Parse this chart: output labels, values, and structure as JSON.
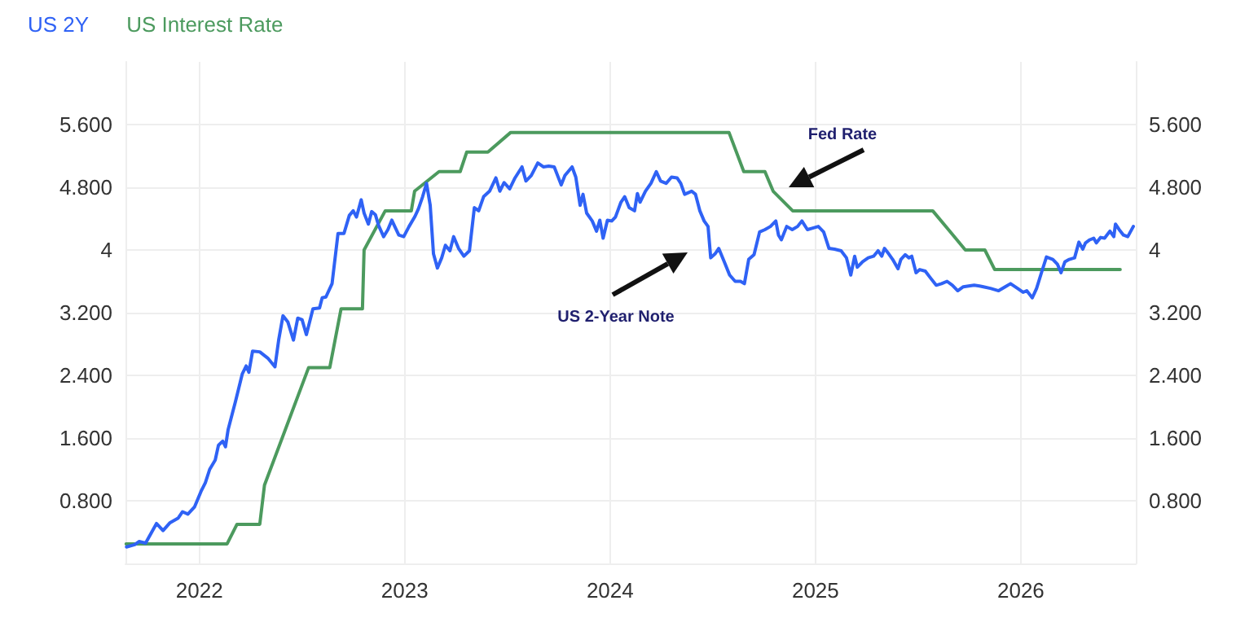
{
  "chart_data": {
    "type": "line",
    "series": [
      {
        "name": "US 2Y",
        "color": "#2f62f5",
        "x": [
          2021.645,
          2021.685,
          2021.706,
          2021.738,
          2021.791,
          2021.823,
          2021.857,
          2021.897,
          2021.918,
          2021.944,
          2021.976,
          2022.008,
          2022.029,
          2022.05,
          2022.077,
          2022.093,
          2022.114,
          2022.127,
          2022.14,
          2022.175,
          2022.209,
          2022.228,
          2022.241,
          2022.259,
          2022.294,
          2022.333,
          2022.368,
          2022.386,
          2022.407,
          2022.431,
          2022.458,
          2022.479,
          2022.5,
          2022.521,
          2022.553,
          2022.585,
          2022.598,
          2022.616,
          2022.646,
          2022.675,
          2022.704,
          2022.73,
          2022.749,
          2022.765,
          2022.788,
          2022.802,
          2022.823,
          2022.839,
          2022.857,
          2022.873,
          2022.897,
          2022.918,
          2022.937,
          2022.955,
          2022.971,
          2022.995,
          2023.021,
          2023.048,
          2023.066,
          2023.087,
          2023.106,
          2023.124,
          2023.14,
          2023.159,
          2023.18,
          2023.198,
          2023.22,
          2023.238,
          2023.262,
          2023.288,
          2023.315,
          2023.339,
          2023.36,
          2023.384,
          2023.413,
          2023.444,
          2023.463,
          2023.484,
          2023.511,
          2023.537,
          2023.571,
          2023.59,
          2023.616,
          2023.648,
          2023.675,
          2023.701,
          2023.728,
          2023.762,
          2023.78,
          2023.815,
          2023.833,
          2023.854,
          2023.868,
          2023.886,
          2023.913,
          2023.934,
          2023.95,
          2023.966,
          2023.987,
          2024.008,
          2024.026,
          2024.053,
          2024.071,
          2024.093,
          2024.119,
          2024.133,
          2024.146,
          2024.172,
          2024.199,
          2024.225,
          2024.246,
          2024.273,
          2024.299,
          2024.326,
          2024.344,
          2024.363,
          2024.397,
          2024.416,
          2024.437,
          2024.458,
          2024.477,
          2024.49,
          2024.511,
          2024.529,
          2024.556,
          2024.582,
          2024.609,
          2024.635,
          2024.654,
          2024.675,
          2024.701,
          2024.728,
          2024.754,
          2024.781,
          2024.807,
          2024.82,
          2024.834,
          2024.86,
          2024.887,
          2024.913,
          2024.934,
          2024.961,
          2024.987,
          2025.014,
          2025.04,
          2025.066,
          2025.093,
          2025.125,
          2025.151,
          2025.172,
          2025.191,
          2025.204,
          2025.23,
          2025.257,
          2025.283,
          2025.305,
          2025.323,
          2025.336,
          2025.357,
          2025.376,
          2025.402,
          2025.416,
          2025.437,
          2025.455,
          2025.469,
          2025.49,
          2025.508,
          2025.535,
          2025.561,
          2025.588,
          2025.614,
          2025.641,
          2025.667,
          2025.693,
          2025.72,
          2025.746,
          2025.773,
          2025.799,
          2025.818,
          2025.852,
          2025.892,
          2025.924,
          2025.95,
          2025.984,
          2026.011,
          2026.029,
          2026.056,
          2026.077,
          2026.103,
          2026.125,
          2026.156,
          2026.178,
          2026.196,
          2026.215,
          2026.236,
          2026.262,
          2026.283,
          2026.302,
          2026.315,
          2026.336,
          2026.355,
          2026.368,
          2026.389,
          2026.408,
          2026.434,
          2026.453,
          2026.461,
          2026.479,
          2026.5,
          2026.521,
          2026.548
        ],
        "values": [
          0.21,
          0.24,
          0.28,
          0.26,
          0.51,
          0.42,
          0.52,
          0.58,
          0.66,
          0.63,
          0.72,
          0.92,
          1.03,
          1.2,
          1.32,
          1.51,
          1.56,
          1.49,
          1.71,
          2.06,
          2.42,
          2.52,
          2.44,
          2.71,
          2.7,
          2.62,
          2.51,
          2.85,
          3.16,
          3.08,
          2.85,
          3.13,
          3.11,
          2.92,
          3.25,
          3.26,
          3.39,
          3.4,
          3.57,
          4.21,
          4.21,
          4.44,
          4.5,
          4.42,
          4.64,
          4.47,
          4.33,
          4.49,
          4.45,
          4.31,
          4.17,
          4.26,
          4.38,
          4.28,
          4.19,
          4.17,
          4.3,
          4.42,
          4.52,
          4.68,
          4.85,
          4.57,
          3.95,
          3.77,
          3.9,
          4.06,
          3.99,
          4.17,
          4.02,
          3.92,
          3.99,
          4.54,
          4.5,
          4.68,
          4.75,
          4.92,
          4.75,
          4.86,
          4.78,
          4.92,
          5.06,
          4.88,
          4.95,
          5.11,
          5.06,
          5.07,
          5.06,
          4.83,
          4.95,
          5.06,
          4.93,
          4.57,
          4.71,
          4.47,
          4.37,
          4.24,
          4.38,
          4.15,
          4.38,
          4.37,
          4.42,
          4.61,
          4.68,
          4.54,
          4.5,
          4.72,
          4.61,
          4.75,
          4.85,
          5.0,
          4.88,
          4.85,
          4.93,
          4.92,
          4.85,
          4.71,
          4.75,
          4.71,
          4.5,
          4.37,
          4.3,
          3.9,
          3.95,
          4.02,
          3.85,
          3.68,
          3.6,
          3.6,
          3.57,
          3.88,
          3.94,
          4.23,
          4.26,
          4.3,
          4.37,
          4.19,
          4.13,
          4.3,
          4.26,
          4.3,
          4.37,
          4.26,
          4.28,
          4.3,
          4.23,
          4.02,
          4.01,
          3.99,
          3.9,
          3.68,
          3.92,
          3.78,
          3.85,
          3.9,
          3.92,
          3.99,
          3.92,
          4.02,
          3.95,
          3.88,
          3.76,
          3.88,
          3.94,
          3.9,
          3.92,
          3.71,
          3.75,
          3.73,
          3.64,
          3.55,
          3.57,
          3.6,
          3.55,
          3.48,
          3.53,
          3.54,
          3.55,
          3.54,
          3.53,
          3.51,
          3.48,
          3.53,
          3.57,
          3.51,
          3.46,
          3.48,
          3.39,
          3.51,
          3.73,
          3.91,
          3.88,
          3.82,
          3.71,
          3.85,
          3.88,
          3.9,
          4.1,
          4.01,
          4.09,
          4.13,
          4.15,
          4.09,
          4.16,
          4.15,
          4.24,
          4.17,
          4.33,
          4.26,
          4.19,
          4.17,
          4.3
        ]
      },
      {
        "name": "US Interest Rate",
        "color": "#4c9a5e",
        "x": [
          2021.643,
          2022.135,
          2022.183,
          2022.294,
          2022.317,
          2022.532,
          2022.635,
          2022.69,
          2022.794,
          2022.802,
          2022.905,
          2023.032,
          2023.048,
          2023.167,
          2023.27,
          2023.302,
          2023.405,
          2023.516,
          2024.579,
          2024.651,
          2024.754,
          2024.794,
          2024.889,
          2025.571,
          2025.651,
          2025.73,
          2025.825,
          2025.873,
          2026.484
        ],
        "values": [
          0.25,
          0.25,
          0.5,
          0.5,
          1.0,
          2.5,
          2.5,
          3.25,
          3.25,
          4.0,
          4.5,
          4.5,
          4.75,
          5.0,
          5.0,
          5.25,
          5.25,
          5.5,
          5.5,
          5.0,
          5.0,
          4.75,
          4.5,
          4.5,
          4.25,
          4.0,
          4.0,
          3.75,
          3.75
        ]
      }
    ],
    "annotations": [
      "Fed Rate",
      "US 2-Year Note"
    ],
    "xlim": [
      2021.64,
      2026.56
    ],
    "xticks": [
      2022,
      2023,
      2024,
      2025,
      2026
    ],
    "ylim": [
      0,
      6.4
    ],
    "yticks": [
      {
        "value": 0.8,
        "label": "0.800"
      },
      {
        "value": 1.6,
        "label": "1.600"
      },
      {
        "value": 2.4,
        "label": "2.400"
      },
      {
        "value": 3.2,
        "label": "3.200"
      },
      4,
      {
        "value": 4.8,
        "label": "4.800"
      },
      {
        "value": 5.6,
        "label": "5.600"
      }
    ],
    "y2lim": [
      0,
      6.4
    ],
    "y2ticks": [
      {
        "value": 0.8,
        "label": "0.800"
      },
      {
        "value": 1.6,
        "label": "1.600"
      },
      {
        "value": 2.4,
        "label": "2.400"
      },
      {
        "value": 3.2,
        "label": "3.200"
      },
      4,
      {
        "value": 4.8,
        "label": "4.800"
      },
      {
        "value": 5.6,
        "label": "5.600"
      }
    ],
    "grid": true,
    "legend": "top left",
    "marker": "none",
    "line_style": "solid"
  }
}
